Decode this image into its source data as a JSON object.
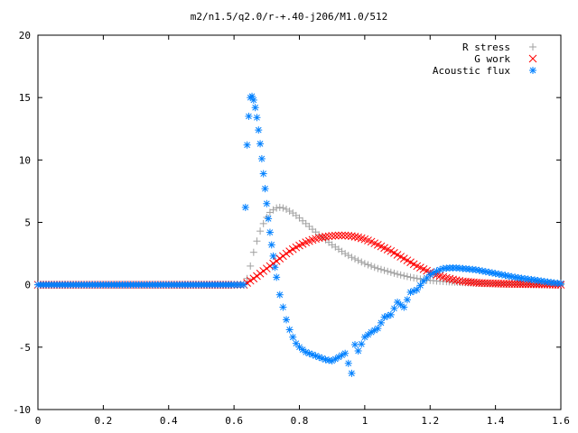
{
  "chart_data": {
    "type": "scatter",
    "title": "m2/n1.5/q2.0/r-+.40-j206/M1.0/512",
    "xlabel": "",
    "ylabel": "",
    "xlim": [
      0,
      1.6
    ],
    "ylim": [
      -10,
      20
    ],
    "x_ticks": [
      0,
      0.2,
      0.4,
      0.6,
      0.8,
      1,
      1.2,
      1.4,
      1.6
    ],
    "x_tick_labels": [
      "0",
      "0.2",
      "0.4",
      "0.6",
      "0.8",
      "1",
      "1.2",
      "1.4",
      "1.6"
    ],
    "y_ticks": [
      -10,
      -5,
      0,
      5,
      10,
      15,
      20
    ],
    "y_tick_labels": [
      "-10",
      "-5",
      "0",
      "5",
      "10",
      "15",
      "20"
    ],
    "grid": false,
    "legend_position": "top-right",
    "series": [
      {
        "name": "R stress",
        "marker": "plus",
        "color": "#a0a0a0",
        "points": [
          [
            0.0,
            0
          ],
          [
            0.1,
            0
          ],
          [
            0.2,
            0
          ],
          [
            0.3,
            0
          ],
          [
            0.4,
            0
          ],
          [
            0.5,
            0
          ],
          [
            0.6,
            0
          ],
          [
            0.63,
            0
          ],
          [
            0.64,
            0.5
          ],
          [
            0.65,
            1.5
          ],
          [
            0.66,
            2.6
          ],
          [
            0.67,
            3.5
          ],
          [
            0.68,
            4.3
          ],
          [
            0.69,
            4.9
          ],
          [
            0.7,
            5.4
          ],
          [
            0.71,
            5.8
          ],
          [
            0.72,
            6.0
          ],
          [
            0.73,
            6.15
          ],
          [
            0.74,
            6.2
          ],
          [
            0.75,
            6.15
          ],
          [
            0.76,
            6.05
          ],
          [
            0.78,
            5.75
          ],
          [
            0.8,
            5.35
          ],
          [
            0.82,
            4.9
          ],
          [
            0.84,
            4.45
          ],
          [
            0.86,
            4.0
          ],
          [
            0.88,
            3.6
          ],
          [
            0.9,
            3.2
          ],
          [
            0.92,
            2.85
          ],
          [
            0.94,
            2.5
          ],
          [
            0.96,
            2.2
          ],
          [
            0.98,
            1.95
          ],
          [
            1.0,
            1.7
          ],
          [
            1.02,
            1.5
          ],
          [
            1.04,
            1.3
          ],
          [
            1.06,
            1.15
          ],
          [
            1.08,
            1.0
          ],
          [
            1.1,
            0.85
          ],
          [
            1.12,
            0.72
          ],
          [
            1.14,
            0.6
          ],
          [
            1.16,
            0.5
          ],
          [
            1.18,
            0.42
          ],
          [
            1.2,
            0.35
          ],
          [
            1.22,
            0.3
          ],
          [
            1.25,
            0.25
          ],
          [
            1.3,
            0.18
          ],
          [
            1.35,
            0.12
          ],
          [
            1.4,
            0.08
          ],
          [
            1.45,
            0.05
          ],
          [
            1.5,
            0.03
          ],
          [
            1.55,
            0.02
          ],
          [
            1.6,
            0.01
          ]
        ]
      },
      {
        "name": "G work",
        "marker": "cross",
        "color": "#ff0000",
        "points": [
          [
            0.0,
            0
          ],
          [
            0.1,
            0
          ],
          [
            0.2,
            0
          ],
          [
            0.3,
            0
          ],
          [
            0.4,
            0
          ],
          [
            0.5,
            0
          ],
          [
            0.6,
            0
          ],
          [
            0.63,
            0
          ],
          [
            0.64,
            0.15
          ],
          [
            0.66,
            0.5
          ],
          [
            0.68,
            0.9
          ],
          [
            0.7,
            1.3
          ],
          [
            0.72,
            1.7
          ],
          [
            0.74,
            2.1
          ],
          [
            0.76,
            2.5
          ],
          [
            0.78,
            2.85
          ],
          [
            0.8,
            3.15
          ],
          [
            0.82,
            3.4
          ],
          [
            0.84,
            3.6
          ],
          [
            0.86,
            3.75
          ],
          [
            0.88,
            3.85
          ],
          [
            0.9,
            3.92
          ],
          [
            0.92,
            3.95
          ],
          [
            0.94,
            3.95
          ],
          [
            0.96,
            3.9
          ],
          [
            0.98,
            3.8
          ],
          [
            1.0,
            3.65
          ],
          [
            1.02,
            3.45
          ],
          [
            1.04,
            3.2
          ],
          [
            1.06,
            2.95
          ],
          [
            1.08,
            2.7
          ],
          [
            1.1,
            2.4
          ],
          [
            1.12,
            2.1
          ],
          [
            1.14,
            1.8
          ],
          [
            1.16,
            1.5
          ],
          [
            1.18,
            1.25
          ],
          [
            1.2,
            1.0
          ],
          [
            1.22,
            0.8
          ],
          [
            1.24,
            0.62
          ],
          [
            1.26,
            0.48
          ],
          [
            1.28,
            0.36
          ],
          [
            1.3,
            0.27
          ],
          [
            1.35,
            0.15
          ],
          [
            1.4,
            0.1
          ],
          [
            1.45,
            0.07
          ],
          [
            1.5,
            0.05
          ],
          [
            1.55,
            0.03
          ],
          [
            1.6,
            0.0
          ]
        ]
      },
      {
        "name": "Acoustic flux",
        "marker": "star",
        "color": "#0080ff",
        "points": [
          [
            0.0,
            0
          ],
          [
            0.05,
            0
          ],
          [
            0.1,
            0
          ],
          [
            0.15,
            0
          ],
          [
            0.2,
            0
          ],
          [
            0.25,
            0
          ],
          [
            0.3,
            0
          ],
          [
            0.35,
            0
          ],
          [
            0.4,
            0
          ],
          [
            0.45,
            0
          ],
          [
            0.5,
            0
          ],
          [
            0.55,
            0
          ],
          [
            0.6,
            0
          ],
          [
            0.63,
            0
          ],
          [
            0.635,
            6.2
          ],
          [
            0.64,
            11.2
          ],
          [
            0.645,
            13.5
          ],
          [
            0.65,
            15.0
          ],
          [
            0.655,
            15.1
          ],
          [
            0.66,
            14.8
          ],
          [
            0.665,
            14.2
          ],
          [
            0.67,
            13.4
          ],
          [
            0.675,
            12.4
          ],
          [
            0.68,
            11.3
          ],
          [
            0.685,
            10.1
          ],
          [
            0.69,
            8.9
          ],
          [
            0.695,
            7.7
          ],
          [
            0.7,
            6.5
          ],
          [
            0.705,
            5.3
          ],
          [
            0.71,
            4.2
          ],
          [
            0.715,
            3.2
          ],
          [
            0.72,
            2.3
          ],
          [
            0.725,
            1.4
          ],
          [
            0.73,
            0.6
          ],
          [
            0.74,
            -0.8
          ],
          [
            0.75,
            -1.8
          ],
          [
            0.76,
            -2.8
          ],
          [
            0.77,
            -3.6
          ],
          [
            0.78,
            -4.2
          ],
          [
            0.79,
            -4.7
          ],
          [
            0.8,
            -5.0
          ],
          [
            0.82,
            -5.4
          ],
          [
            0.84,
            -5.6
          ],
          [
            0.86,
            -5.8
          ],
          [
            0.88,
            -6.0
          ],
          [
            0.9,
            -6.1
          ],
          [
            0.92,
            -5.8
          ],
          [
            0.94,
            -5.5
          ],
          [
            0.96,
            -7.1
          ],
          [
            0.97,
            -4.8
          ],
          [
            0.98,
            -5.3
          ],
          [
            1.0,
            -4.2
          ],
          [
            1.02,
            -3.8
          ],
          [
            1.04,
            -3.5
          ],
          [
            1.06,
            -2.6
          ],
          [
            1.08,
            -2.4
          ],
          [
            1.1,
            -1.4
          ],
          [
            1.12,
            -1.8
          ],
          [
            1.14,
            -0.6
          ],
          [
            1.16,
            -0.4
          ],
          [
            1.18,
            0.3
          ],
          [
            1.2,
            0.8
          ],
          [
            1.22,
            1.1
          ],
          [
            1.24,
            1.3
          ],
          [
            1.26,
            1.35
          ],
          [
            1.28,
            1.35
          ],
          [
            1.3,
            1.3
          ],
          [
            1.32,
            1.25
          ],
          [
            1.34,
            1.2
          ],
          [
            1.36,
            1.1
          ],
          [
            1.38,
            1.0
          ],
          [
            1.4,
            0.9
          ],
          [
            1.42,
            0.8
          ],
          [
            1.44,
            0.7
          ],
          [
            1.46,
            0.6
          ],
          [
            1.48,
            0.52
          ],
          [
            1.5,
            0.45
          ],
          [
            1.52,
            0.38
          ],
          [
            1.54,
            0.3
          ],
          [
            1.56,
            0.22
          ],
          [
            1.58,
            0.15
          ],
          [
            1.6,
            0.1
          ]
        ]
      }
    ]
  }
}
